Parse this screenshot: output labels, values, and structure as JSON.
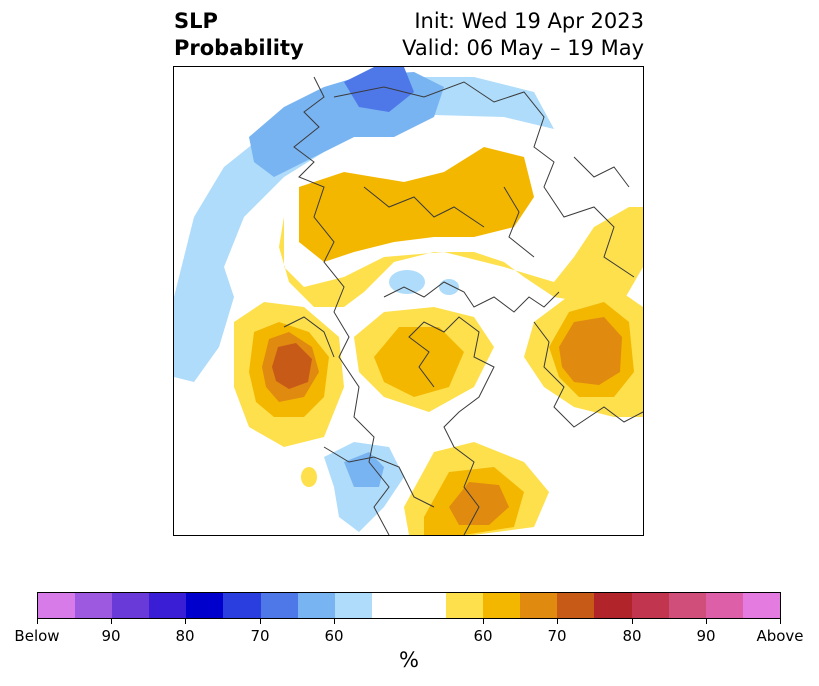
{
  "title": {
    "left_line1": "SLP",
    "left_line2": "Probability",
    "right_line1": "Init: Wed 19 Apr 2023",
    "right_line2": "Valid: 06 May – 19 May"
  },
  "colorbar": {
    "unit_label": "%",
    "segments": [
      "#d67be8",
      "#9d5ae0",
      "#6a3ad8",
      "#3a1ed6",
      "#0000cc",
      "#2a3ee0",
      "#4e78e8",
      "#78b3f2",
      "#aedcfa",
      "#ffffff",
      "#fde04c",
      "#f4b700",
      "#e08a10",
      "#c85a18",
      "#b0242a",
      "#c2354e",
      "#cf4e7a",
      "#dc5fa8",
      "#e37be0"
    ],
    "tick_labels": [
      "Below",
      "90",
      "80",
      "70",
      "60",
      "60",
      "70",
      "80",
      "90",
      "Above"
    ]
  },
  "map": {
    "blue_light": "#aedcfa",
    "blue_mid": "#78b3f2",
    "blue_strong": "#4e78e8",
    "yellow": "#fde04c",
    "gold": "#f4b700",
    "orange": "#e08a10",
    "rust": "#c85a18",
    "coast": "#3a3a3a"
  }
}
